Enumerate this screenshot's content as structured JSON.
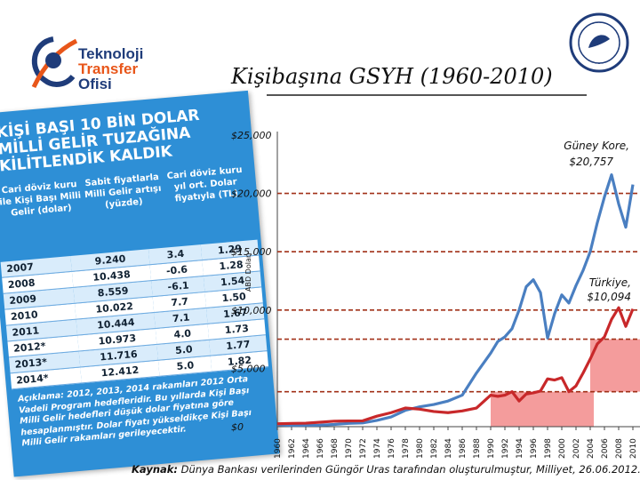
{
  "logo_left": {
    "lines": [
      "Teknoloji",
      "Transfer",
      "Ofisi"
    ],
    "colors": [
      "#1f3c7a",
      "#e8561a",
      "#1f3c7a"
    ]
  },
  "logo_right": {
    "seal": "Gazi University seal"
  },
  "title": "Kişibaşına GSYH (1960-2010)",
  "clipping": {
    "headline": "KİŞİ BAŞI 10 BİN DOLAR MİLLİ GELİR TUZAĞINA KİLİTLENDİK KALDIK",
    "columns": [
      "Cari döviz kuru ile Kişi Başı Milli Gelir (dolar)",
      "Sabit fiyatlarla Milli Gelir artışı (yüzde)",
      "Cari döviz kuru yıl ort. Dolar fiyatıyla (TL)"
    ],
    "rows": [
      [
        "2007",
        "9.240",
        "3.4",
        "1.29"
      ],
      [
        "2008",
        "10.438",
        "-0.6",
        "1.28"
      ],
      [
        "2009",
        "8.559",
        "-6.1",
        "1.54"
      ],
      [
        "2010",
        "10.022",
        "7.7",
        "1.50"
      ],
      [
        "2011",
        "10.444",
        "7.1",
        "1.67"
      ],
      [
        "2012*",
        "10.973",
        "4.0",
        "1.73"
      ],
      [
        "2013*",
        "11.716",
        "5.0",
        "1.77"
      ],
      [
        "2014*",
        "12.412",
        "5.0",
        "1.82"
      ]
    ],
    "note": "Açıklama: 2012, 2013, 2014 rakamları 2012 Orta Vadeli Program hedefleridir. Bu yıllarda Kişi Başı Milli Gelir hedefleri düşük dolar fiyatına göre hesaplanmıştır. Dolar fiyatı yükseldikçe Kişi Başı Milli Gelir rakamları gerileyecektir."
  },
  "source": {
    "label": "Kaynak:",
    "text": " Dünya Bankası verilerinden Güngör Uras tarafından oluşturulmuştur, Milliyet, 26.06.2012."
  },
  "colors": {
    "korea": "#4a7fc1",
    "turkey": "#c8282a",
    "band": "#f28b8b",
    "dash": "#a13018",
    "clip": "#2e8fd6"
  },
  "chart_data": {
    "type": "line",
    "title": "",
    "ylabel": "ABD Doları",
    "xlabel": "",
    "ylim": [
      0,
      25000
    ],
    "xlim": [
      1960,
      2010
    ],
    "y_ticks": [
      0,
      5000,
      10000,
      15000,
      20000,
      25000
    ],
    "y_tick_labels": [
      "$0",
      "$5,000",
      "$10,000",
      "$15,000",
      "$20,000",
      "$25,000"
    ],
    "x_ticks": [
      1960,
      1962,
      1964,
      1966,
      1968,
      1970,
      1972,
      1974,
      1976,
      1978,
      1980,
      1982,
      1984,
      1986,
      1988,
      1990,
      1992,
      1994,
      1996,
      1998,
      2000,
      2002,
      2004,
      2006,
      2008,
      2010
    ],
    "reference_lines": [
      20000,
      15000,
      10000,
      7500,
      3000
    ],
    "shaded_bands": [
      {
        "x": [
          1990,
          2002
        ],
        "y": [
          0,
          3000
        ]
      },
      {
        "x": [
          2004,
          2010
        ],
        "y": [
          3000,
          7500
        ]
      }
    ],
    "series": [
      {
        "name": "Güney Kore",
        "end_label": "Güney Kore, $20,757",
        "x": [
          1960,
          1962,
          1964,
          1966,
          1968,
          1970,
          1972,
          1974,
          1976,
          1978,
          1980,
          1982,
          1984,
          1986,
          1988,
          1990,
          1991,
          1992,
          1993,
          1994,
          1995,
          1996,
          1997,
          1998,
          1999,
          2000,
          2001,
          2002,
          2003,
          2004,
          2005,
          2006,
          2007,
          2008,
          2009,
          2010
        ],
        "y": [
          150,
          100,
          110,
          130,
          190,
          280,
          320,
          540,
          830,
          1400,
          1700,
          1900,
          2200,
          2700,
          4600,
          6300,
          7300,
          7700,
          8400,
          10000,
          12000,
          12600,
          11500,
          7600,
          9700,
          11300,
          10600,
          12100,
          13400,
          15000,
          17500,
          19700,
          21600,
          19100,
          17100,
          20757
        ]
      },
      {
        "name": "Türkiye",
        "end_label": "Türkiye, $10,094",
        "x": [
          1960,
          1962,
          1964,
          1966,
          1968,
          1970,
          1972,
          1974,
          1976,
          1978,
          1980,
          1982,
          1984,
          1986,
          1988,
          1990,
          1991,
          1992,
          1993,
          1994,
          1995,
          1996,
          1997,
          1998,
          1999,
          2000,
          2001,
          2002,
          2003,
          2004,
          2005,
          2006,
          2007,
          2008,
          2009,
          2010
        ],
        "y": [
          250,
          280,
          300,
          380,
          470,
          490,
          500,
          900,
          1200,
          1600,
          1500,
          1300,
          1200,
          1350,
          1600,
          2700,
          2600,
          2700,
          3000,
          2200,
          2800,
          2900,
          3050,
          4100,
          4000,
          4200,
          3000,
          3500,
          4600,
          5800,
          7100,
          7700,
          9200,
          10200,
          8600,
          10094
        ]
      }
    ]
  }
}
